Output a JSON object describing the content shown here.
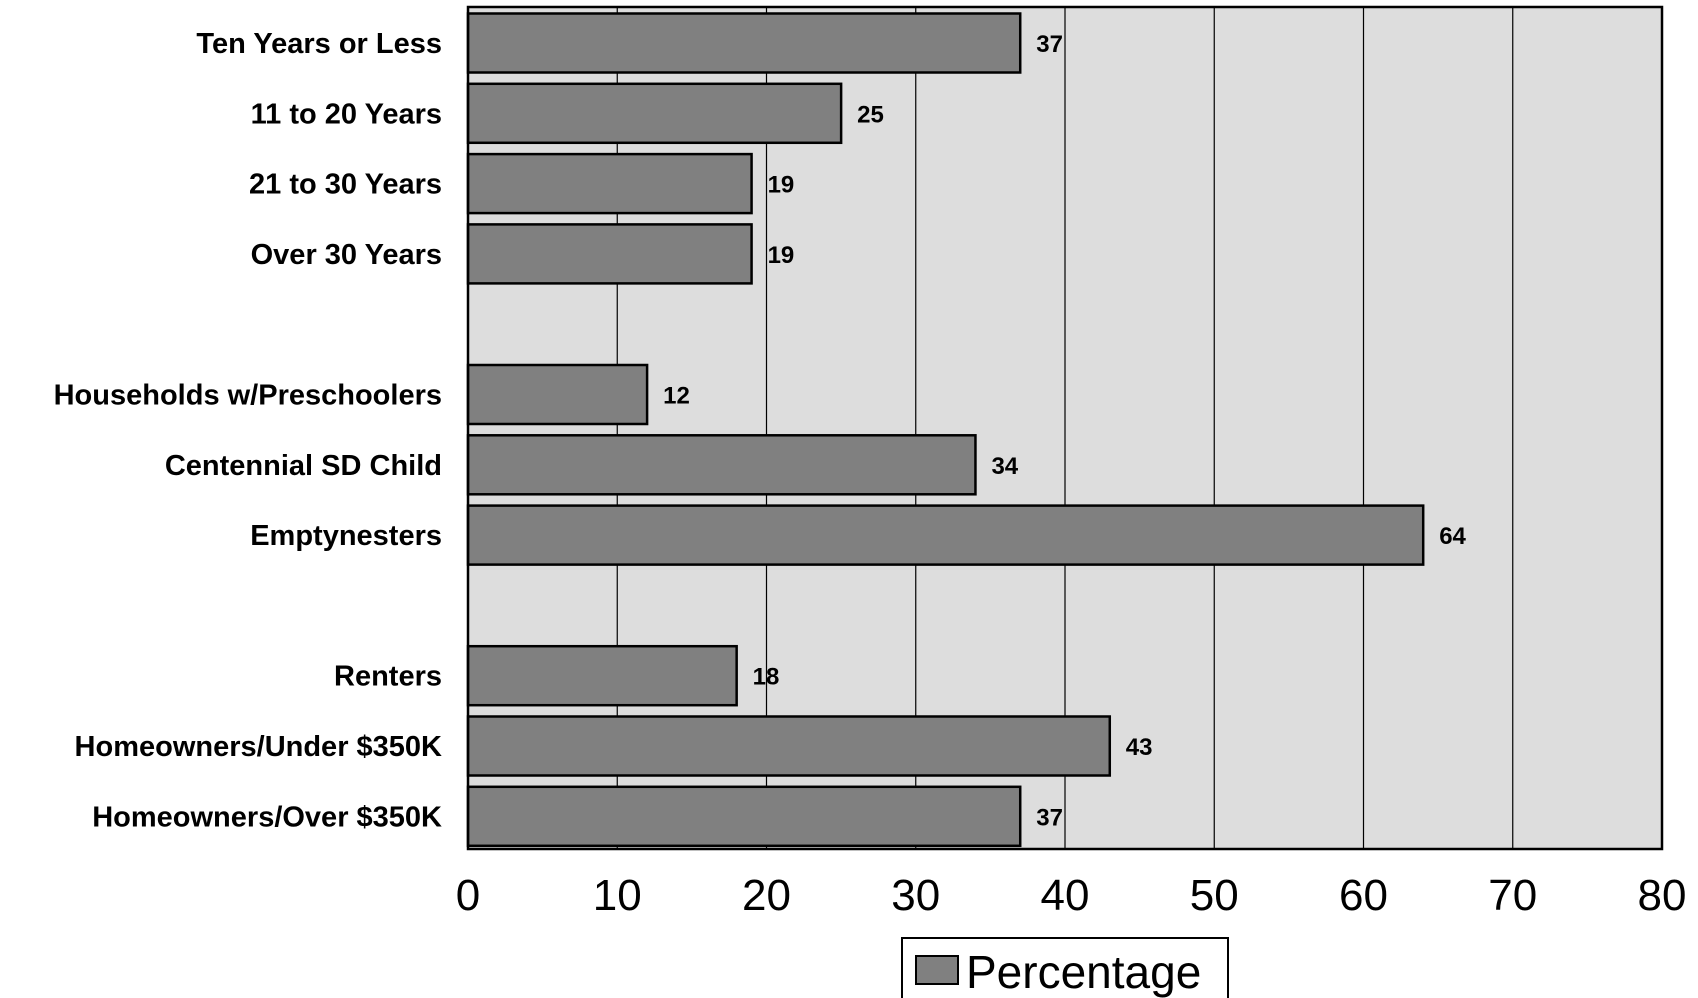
{
  "chart_data": {
    "type": "bar",
    "orientation": "horizontal",
    "categories": [
      "Ten Years or Less",
      "11 to 20 Years",
      "21 to 30 Years",
      "Over 30 Years",
      "",
      "Households w/Preschoolers",
      "Centennial SD Child",
      "Emptynesters",
      "",
      "Renters",
      "Homeowners/Under $350K",
      "Homeowners/Over $350K"
    ],
    "series": [
      {
        "name": "Percentage",
        "values": [
          37,
          25,
          19,
          19,
          null,
          12,
          34,
          64,
          null,
          18,
          43,
          37
        ]
      }
    ],
    "xlim": [
      0,
      80
    ],
    "xticks": [
      0,
      10,
      20,
      30,
      40,
      50,
      60,
      70,
      80
    ],
    "grid": true,
    "legend_position": "bottom-center",
    "colors": {
      "bar_fill": "#808080",
      "bar_stroke": "#000000",
      "plot_background": "#dddddd",
      "gridline": "#000000"
    }
  }
}
